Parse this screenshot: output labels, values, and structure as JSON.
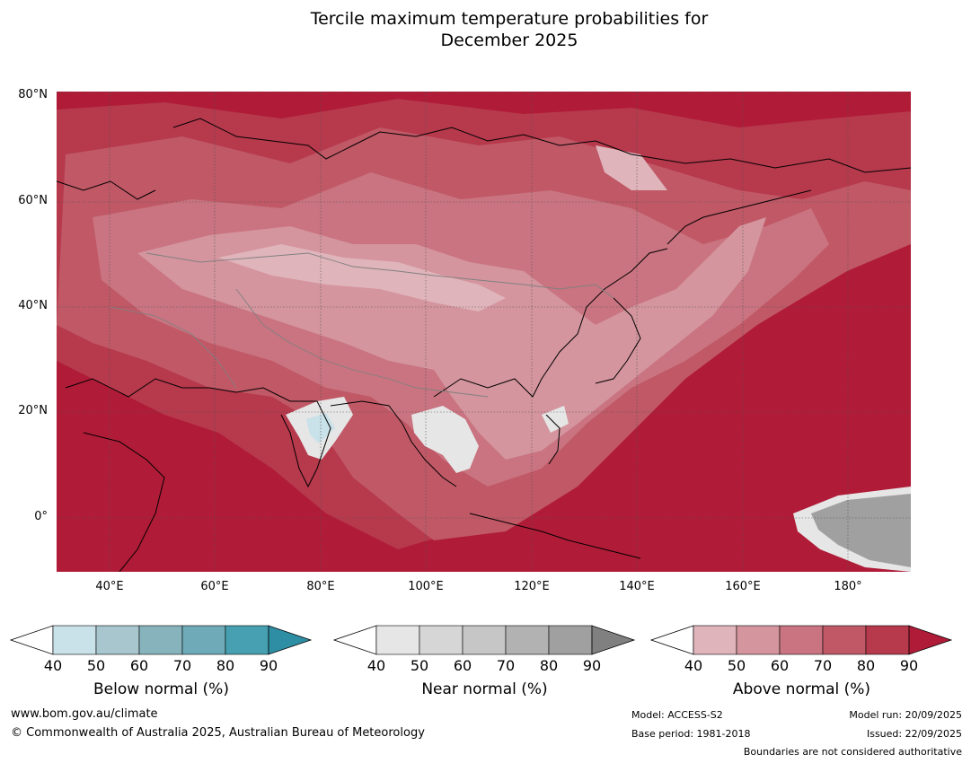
{
  "title": {
    "line1": "Tercile maximum temperature probabilities for",
    "line2": "December 2025"
  },
  "map": {
    "lat_labels": [
      "80°N",
      "60°N",
      "40°N",
      "20°N",
      "0°"
    ],
    "lon_labels": [
      "40°E",
      "60°E",
      "80°E",
      "100°E",
      "120°E",
      "140°E",
      "160°E",
      "180°"
    ],
    "lon_range": [
      30,
      192
    ],
    "lat_range": [
      -10,
      81
    ],
    "background_color": "#b01b37"
  },
  "colorbars": [
    {
      "title": "Below normal (%)",
      "ticks": [
        "40",
        "50",
        "60",
        "70",
        "80",
        "90"
      ],
      "colors": [
        "#c9e1e8",
        "#a7c6cd",
        "#87b3bd",
        "#6eaab8",
        "#46a0b2",
        "#2e8ea3"
      ]
    },
    {
      "title": "Near normal (%)",
      "ticks": [
        "40",
        "50",
        "60",
        "70",
        "80",
        "90"
      ],
      "colors": [
        "#e6e6e6",
        "#d6d6d6",
        "#c6c6c6",
        "#b2b2b2",
        "#a0a0a0",
        "#808080"
      ]
    },
    {
      "title": "Above normal (%)",
      "ticks": [
        "40",
        "50",
        "60",
        "70",
        "80",
        "90"
      ],
      "colors": [
        "#e0b4bb",
        "#d4959e",
        "#c97480",
        "#c05866",
        "#b6394c",
        "#b01b37"
      ]
    }
  ],
  "footer": {
    "url": "www.bom.gov.au/climate",
    "copyright": "© Commonwealth of Australia 2025, Australian Bureau of Meteorology",
    "model": "Model: ACCESS-S2",
    "base_period": "Base period: 1981-2018",
    "model_run": "Model run: 20/09/2025",
    "issued": "Issued: 22/09/2025",
    "disclaimer": "Boundaries are not considered authoritative"
  }
}
